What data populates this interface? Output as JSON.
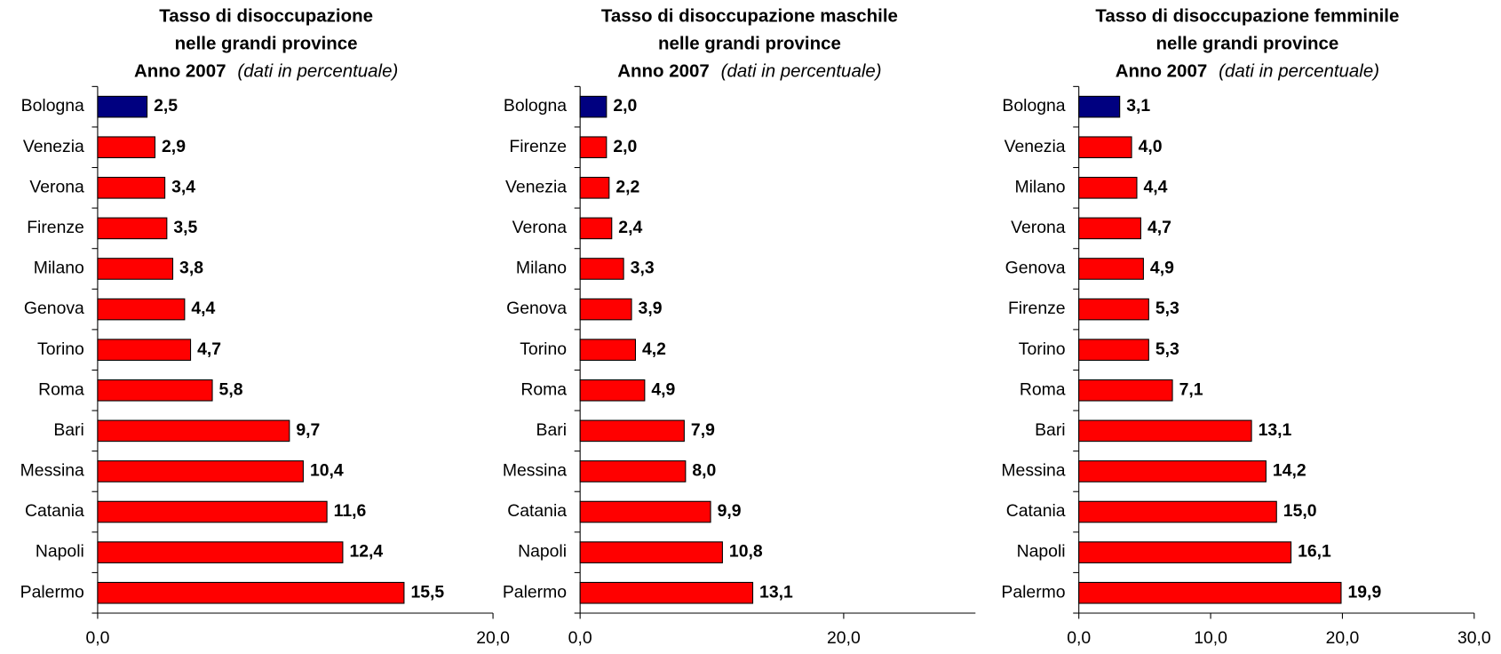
{
  "chart_data": [
    {
      "type": "bar",
      "orientation": "horizontal",
      "title": [
        "Tasso di disoccupazione",
        "nelle grandi province"
      ],
      "subtitle": "Anno  2007",
      "note": "(dati in percentuale)",
      "categories": [
        "Bologna",
        "Venezia",
        "Verona",
        "Firenze",
        "Milano",
        "Genova",
        "Torino",
        "Roma",
        "Bari",
        "Messina",
        "Catania",
        "Napoli",
        "Palermo"
      ],
      "values": [
        2.5,
        2.9,
        3.4,
        3.5,
        3.8,
        4.4,
        4.7,
        5.8,
        9.7,
        10.4,
        11.6,
        12.4,
        15.5
      ],
      "value_labels": [
        "2,5",
        "2,9",
        "3,4",
        "3,5",
        "3,8",
        "4,4",
        "4,7",
        "5,8",
        "9,7",
        "10,4",
        "11,6",
        "12,4",
        "15,5"
      ],
      "colors": [
        "#000080",
        "#ff0000",
        "#ff0000",
        "#ff0000",
        "#ff0000",
        "#ff0000",
        "#ff0000",
        "#ff0000",
        "#ff0000",
        "#ff0000",
        "#ff0000",
        "#ff0000",
        "#ff0000"
      ],
      "xlim": [
        0,
        20
      ],
      "xticks": [
        {
          "value": 0,
          "label": "0,0"
        },
        {
          "value": 20,
          "label": "20,0"
        }
      ]
    },
    {
      "type": "bar",
      "orientation": "horizontal",
      "title": [
        "Tasso di disoccupazione maschile",
        "nelle grandi province"
      ],
      "subtitle": "Anno  2007",
      "note": "(dati in percentuale)",
      "categories": [
        "Bologna",
        "Firenze",
        "Venezia",
        "Verona",
        "Milano",
        "Genova",
        "Torino",
        "Roma",
        "Bari",
        "Messina",
        "Catania",
        "Napoli",
        "Palermo"
      ],
      "values": [
        2.0,
        2.0,
        2.2,
        2.4,
        3.3,
        3.9,
        4.2,
        4.9,
        7.9,
        8.0,
        9.9,
        10.8,
        13.1
      ],
      "value_labels": [
        "2,0",
        "2,0",
        "2,2",
        "2,4",
        "3,3",
        "3,9",
        "4,2",
        "4,9",
        "7,9",
        "8,0",
        "9,9",
        "10,8",
        "13,1"
      ],
      "colors": [
        "#000080",
        "#ff0000",
        "#ff0000",
        "#ff0000",
        "#ff0000",
        "#ff0000",
        "#ff0000",
        "#ff0000",
        "#ff0000",
        "#ff0000",
        "#ff0000",
        "#ff0000",
        "#ff0000"
      ],
      "xlim": [
        0,
        30
      ],
      "xticks": [
        {
          "value": 0,
          "label": "0,0"
        },
        {
          "value": 20,
          "label": "20,0"
        }
      ]
    },
    {
      "type": "bar",
      "orientation": "horizontal",
      "title": [
        "Tasso di disoccupazione femminile",
        "nelle grandi province"
      ],
      "subtitle": "Anno  2007",
      "note": "(dati in percentuale)",
      "categories": [
        "Bologna",
        "Venezia",
        "Milano",
        "Verona",
        "Genova",
        "Firenze",
        "Torino",
        "Roma",
        "Bari",
        "Messina",
        "Catania",
        "Napoli",
        "Palermo"
      ],
      "values": [
        3.1,
        4.0,
        4.4,
        4.7,
        4.9,
        5.3,
        5.3,
        7.1,
        13.1,
        14.2,
        15.0,
        16.1,
        19.9
      ],
      "value_labels": [
        "3,1",
        "4,0",
        "4,4",
        "4,7",
        "4,9",
        "5,3",
        "5,3",
        "7,1",
        "13,1",
        "14,2",
        "15,0",
        "16,1",
        "19,9"
      ],
      "colors": [
        "#000080",
        "#ff0000",
        "#ff0000",
        "#ff0000",
        "#ff0000",
        "#ff0000",
        "#ff0000",
        "#ff0000",
        "#ff0000",
        "#ff0000",
        "#ff0000",
        "#ff0000",
        "#ff0000"
      ],
      "xlim": [
        0,
        30
      ],
      "xticks": [
        {
          "value": 0,
          "label": "0,0"
        },
        {
          "value": 10,
          "label": "10,0"
        },
        {
          "value": 20,
          "label": "20,0"
        },
        {
          "value": 30,
          "label": "30,0"
        }
      ]
    }
  ]
}
